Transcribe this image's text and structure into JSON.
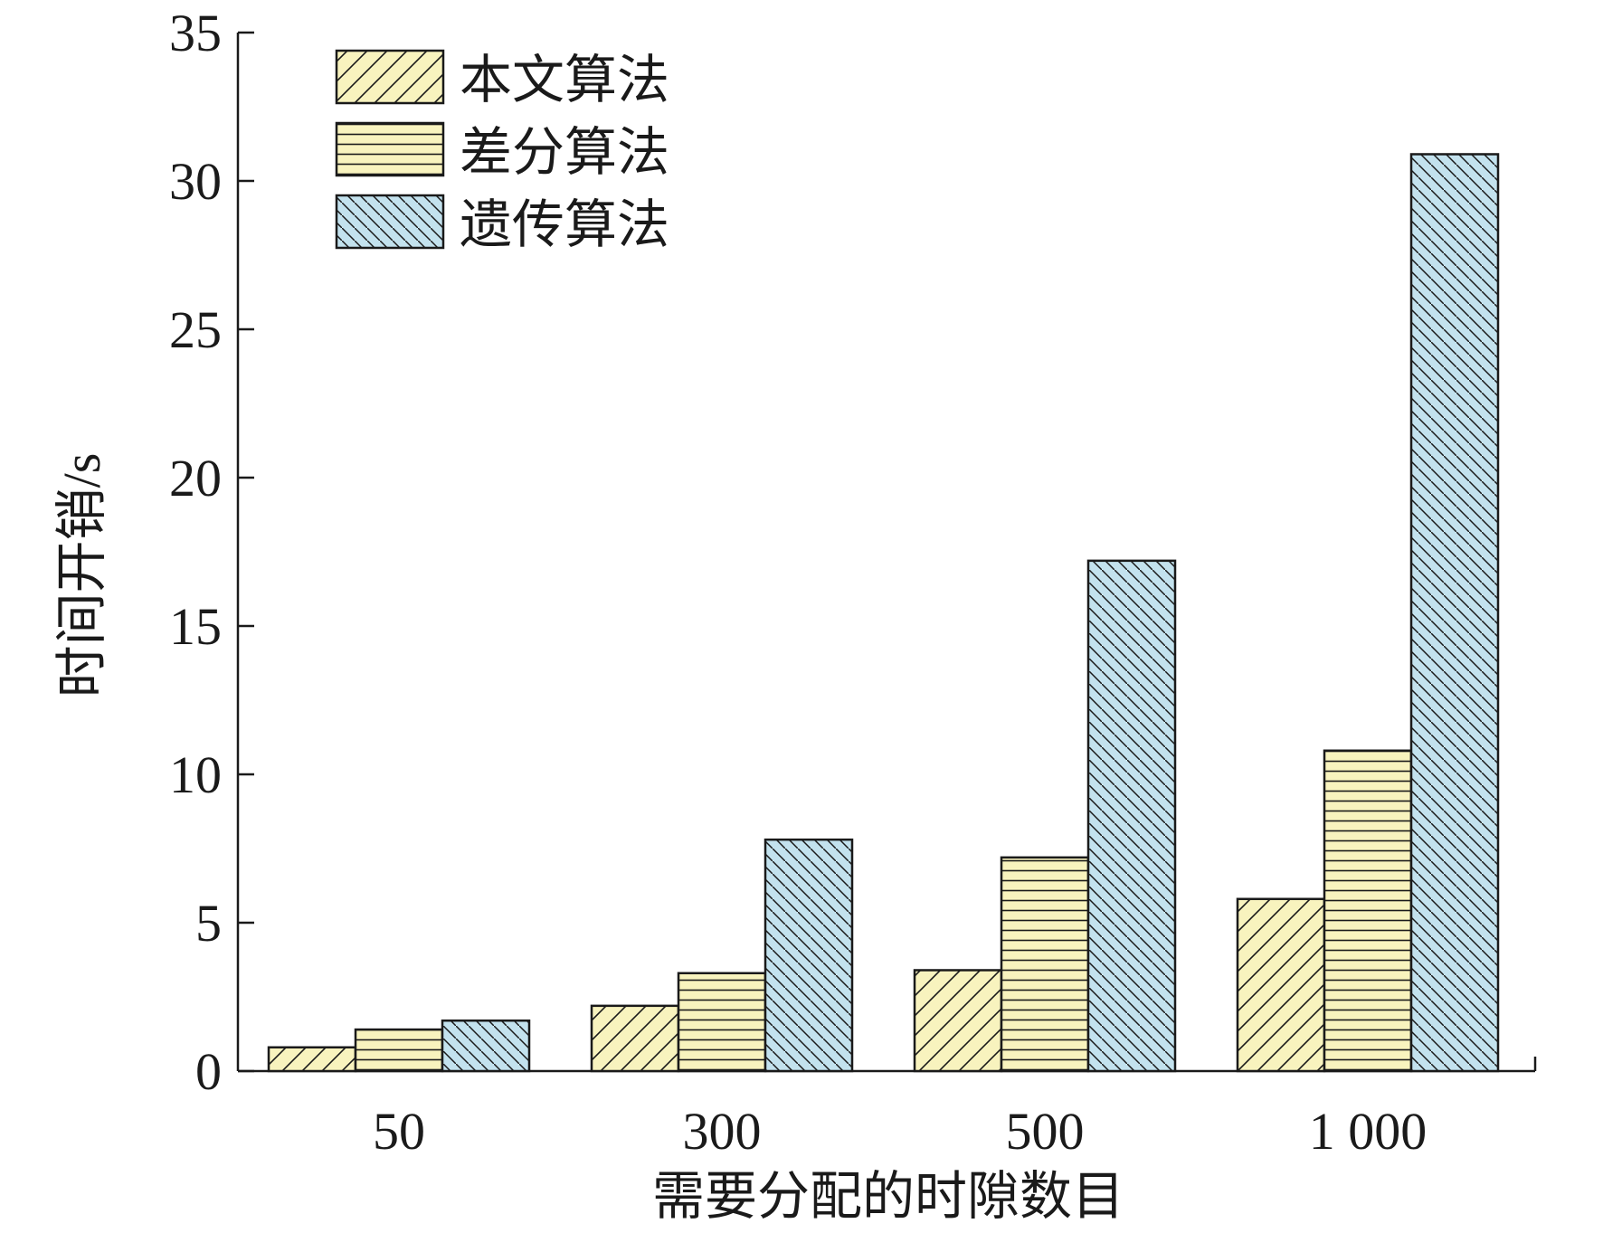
{
  "chart_data": {
    "type": "bar",
    "title": "",
    "xlabel": "需要分配的时隙数目",
    "ylabel": "时间开销/s",
    "categories": [
      "50",
      "300",
      "500",
      "1 000"
    ],
    "series": [
      {
        "name": "本文算法",
        "values": [
          0.8,
          2.2,
          3.4,
          5.8
        ],
        "color": "#f8f3be",
        "pattern": "diagonal-up"
      },
      {
        "name": "差分算法",
        "values": [
          1.4,
          3.3,
          7.2,
          10.8
        ],
        "color": "#f8f3be",
        "pattern": "horizontal"
      },
      {
        "name": "遗传算法",
        "values": [
          1.7,
          7.8,
          17.2,
          30.9
        ],
        "color": "#c3e2ee",
        "pattern": "diagonal-down"
      }
    ],
    "ylim": [
      0,
      35
    ],
    "yticks": [
      0,
      5,
      10,
      15,
      20,
      25,
      30,
      35
    ],
    "grid": false,
    "legend_position": "top-left"
  }
}
